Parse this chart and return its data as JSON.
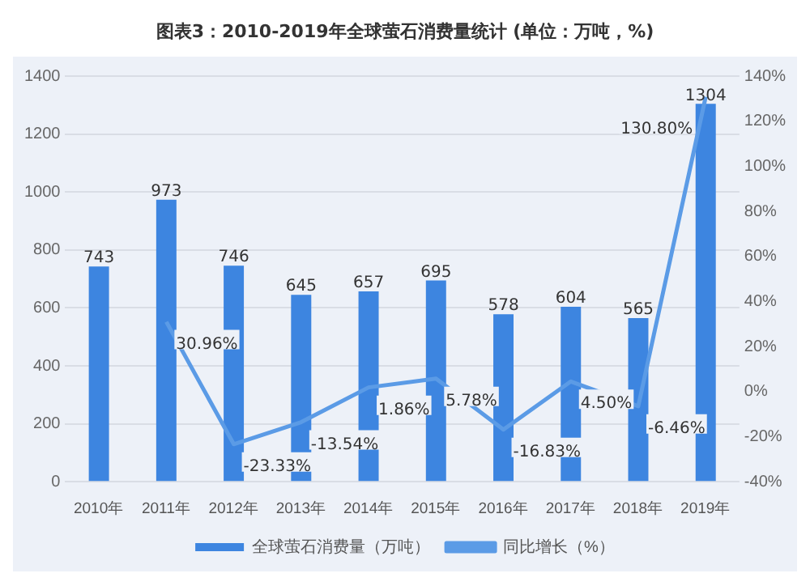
{
  "chart_data": {
    "type": "bar",
    "title": "图表3：2010-2019年全球萤石消费量统计 (单位：万吨，%)",
    "categories": [
      "2010年",
      "2011年",
      "2012年",
      "2013年",
      "2014年",
      "2015年",
      "2016年",
      "2017年",
      "2018年",
      "2019年"
    ],
    "series": [
      {
        "name": "全球萤石消费量（万吨）",
        "color": "#3d85e0",
        "values": [
          743,
          973,
          746,
          645,
          657,
          695,
          578,
          604,
          565,
          1304
        ]
      },
      {
        "name": "同比增长（%）",
        "type": "line",
        "axis": "y2",
        "color": "#5b9be6",
        "values": [
          null,
          30.96,
          -23.33,
          -13.54,
          1.86,
          5.78,
          -16.83,
          4.5,
          -6.46,
          130.8
        ],
        "value_labels": [
          null,
          "30.96%",
          "-23.33%",
          "-13.54%",
          "1.86%",
          "5.78%",
          "-16.83%",
          "4.50%",
          "-6.46%",
          "130.80%"
        ]
      }
    ],
    "data_labels": true,
    "ylim": [
      0,
      1400
    ],
    "yticks": [
      0,
      200,
      400,
      600,
      800,
      1000,
      1200,
      1400
    ],
    "y2lim": [
      -40,
      140
    ],
    "y2ticks": [
      {
        "value": -40,
        "label": "-40%"
      },
      {
        "value": -20,
        "label": "-20%"
      },
      {
        "value": 0,
        "label": "0%"
      },
      {
        "value": 20,
        "label": "20%"
      },
      {
        "value": 40,
        "label": "40%"
      },
      {
        "value": 60,
        "label": "60%"
      },
      {
        "value": 80,
        "label": "80%"
      },
      {
        "value": 100,
        "label": "100%"
      },
      {
        "value": 120,
        "label": "120%"
      },
      {
        "value": 140,
        "label": "140%"
      }
    ],
    "grid": "y",
    "legend": "bottom",
    "marker": "none",
    "line_style": "solid"
  }
}
